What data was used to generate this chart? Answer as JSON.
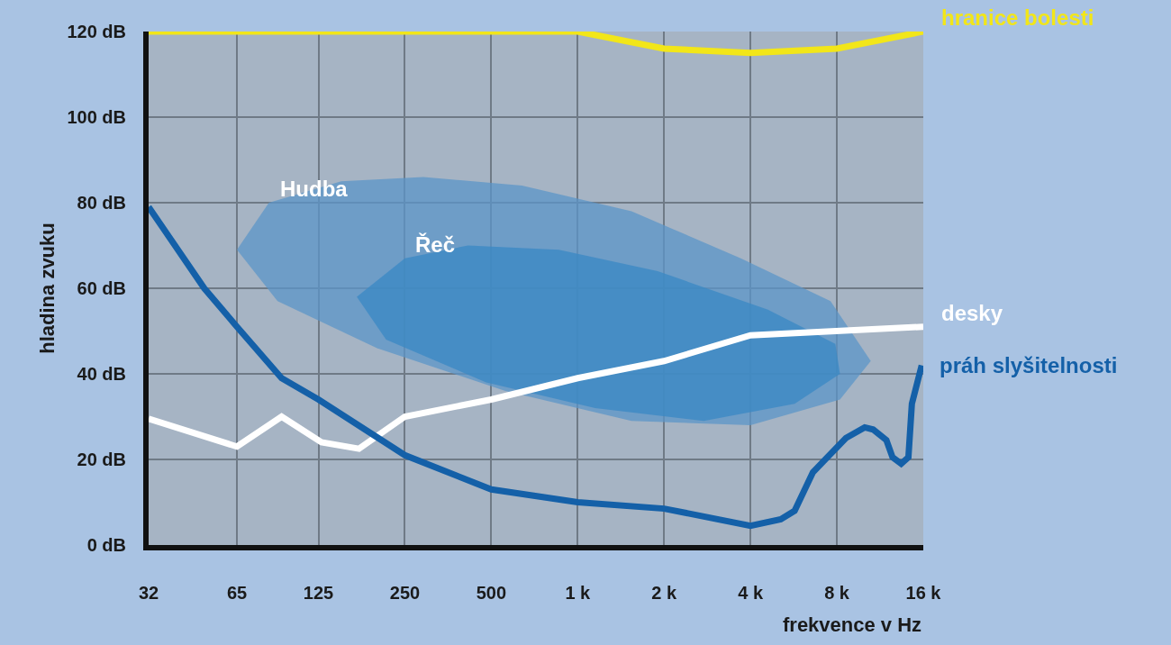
{
  "chart_data": {
    "type": "line",
    "xlabel": "frekvence v Hz",
    "ylabel": "hladina zvuku",
    "log": "x",
    "xlim": [
      32,
      16000
    ],
    "xticks": [
      32,
      65,
      125,
      250,
      500,
      {
        "value": 1000,
        "label": "1 k"
      },
      {
        "value": 2000,
        "label": "2 k"
      },
      {
        "value": 4000,
        "label": "4 k"
      },
      {
        "value": 8000,
        "label": "8 k"
      },
      {
        "value": 16000,
        "label": "16 k"
      }
    ],
    "ylim": [
      0,
      120
    ],
    "yticks": [
      {
        "value": 0,
        "label": "0 dB"
      },
      {
        "value": 20,
        "label": "20 dB"
      },
      {
        "value": 40,
        "label": "40 dB"
      },
      {
        "value": 60,
        "label": "60 dB"
      },
      {
        "value": 80,
        "label": "80 dB"
      },
      {
        "value": 100,
        "label": "100 dB"
      },
      {
        "value": 120,
        "label": "120 dB"
      }
    ],
    "grid": true,
    "legend": false,
    "marker": "none",
    "line_style": "solid",
    "series": [
      {
        "type": "area",
        "name": "Hudba",
        "color": "#5b95c8",
        "x": [
          65,
          84,
          150,
          290,
          640,
          1540,
          3700,
          7600,
          10500,
          8200,
          4000,
          1540,
          560,
          200,
          90,
          65
        ],
        "values": [
          69,
          80,
          85,
          86,
          84,
          78,
          67,
          57,
          43,
          34,
          28,
          29,
          36,
          46,
          57,
          69
        ]
      },
      {
        "type": "area",
        "name": "Řeč",
        "color": "#3a88c4",
        "x": [
          170,
          250,
          415,
          860,
          1900,
          4600,
          7900,
          8200,
          5700,
          2750,
          1150,
          480,
          215,
          170
        ],
        "values": [
          58,
          67,
          70,
          69,
          64,
          55,
          47,
          40,
          33,
          29,
          32,
          38,
          48,
          58
        ]
      },
      {
        "name": "hranice bolesti",
        "color": "#f2e619",
        "x": [
          32,
          1000,
          2000,
          4000,
          8000,
          16000
        ],
        "values": [
          120,
          120,
          116,
          115,
          116,
          120
        ]
      },
      {
        "name": "desky",
        "color": "#ffffff",
        "x": [
          32,
          65,
          93,
          128,
          173,
          250,
          500,
          1000,
          2000,
          4000,
          16000
        ],
        "values": [
          29.5,
          23,
          30,
          24,
          22.5,
          30,
          34,
          39,
          43,
          49,
          51
        ]
      },
      {
        "name": "práh slyšitelnosti",
        "color": "#1460a8",
        "x": [
          32,
          50,
          65,
          93,
          125,
          250,
          500,
          1000,
          2000,
          4000,
          5100,
          5700,
          6600,
          8600,
          10000,
          10700,
          11900,
          12500,
          13400,
          14200,
          14600,
          15800
        ],
        "values": [
          79,
          60,
          51,
          39,
          34,
          21,
          13,
          10,
          8.5,
          4.5,
          6,
          8,
          17,
          25,
          27.5,
          27,
          24.5,
          20.5,
          19,
          20.5,
          33,
          42
        ]
      }
    ]
  }
}
